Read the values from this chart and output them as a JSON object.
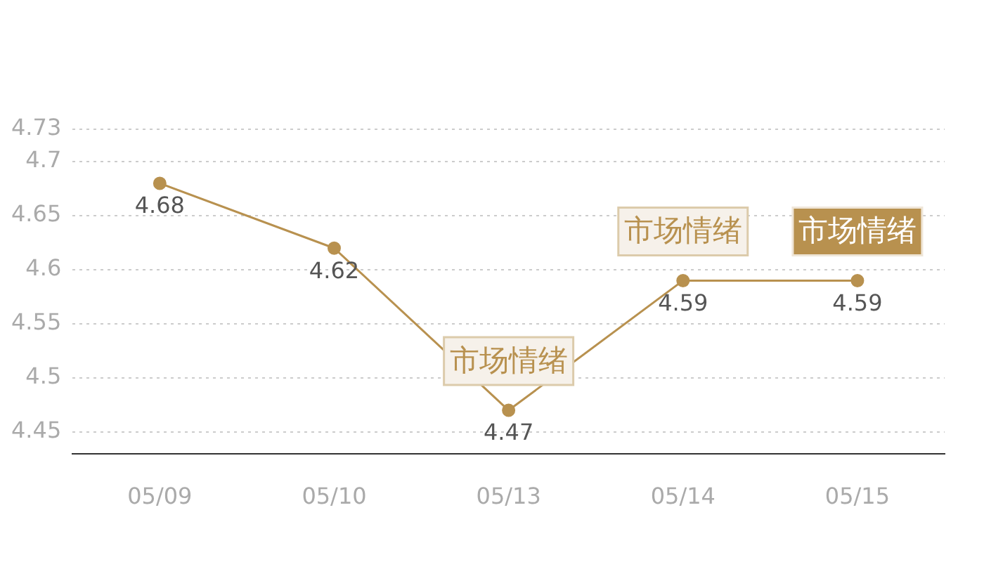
{
  "chart_data": {
    "type": "line",
    "categories": [
      "05/09",
      "05/10",
      "05/13",
      "05/14",
      "05/15"
    ],
    "series": [
      {
        "color": "#b8914f",
        "values": [
          4.68,
          4.62,
          4.47,
          4.59,
          4.59
        ]
      }
    ],
    "ylim": [
      4.43,
      4.73
    ],
    "yticks": [
      4.45,
      4.5,
      4.55,
      4.6,
      4.65,
      4.7,
      4.73
    ],
    "grid": "y",
    "marker": "circle",
    "line_style": "solid",
    "data_labels": true,
    "legend": false,
    "annotations": [
      {
        "text": "市场情绪",
        "x": "05/13",
        "y": 4.47
      },
      {
        "text": "市场情绪",
        "x": "05/14",
        "y": 4.59
      },
      {
        "text": "市场情绪",
        "x": "05/15",
        "y": 4.59
      }
    ]
  }
}
